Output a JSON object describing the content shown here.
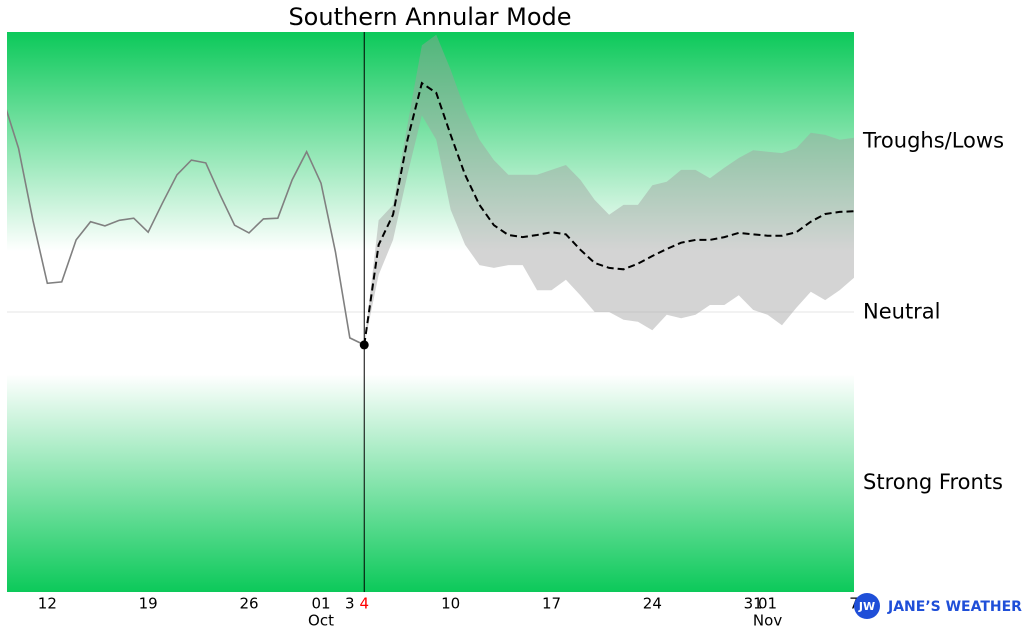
{
  "chart_data": {
    "type": "forecast-spread",
    "title": "Southern Annular Mode",
    "xlim": [
      -24.8,
      34
    ],
    "ylim": [
      -4,
      4
    ],
    "xticks": [
      {
        "value": -22,
        "label": "12"
      },
      {
        "value": -15,
        "label": "19"
      },
      {
        "value": -8,
        "label": "26"
      },
      {
        "value": -3,
        "label": "01"
      },
      {
        "value": -1,
        "label": "3"
      },
      {
        "value": 0,
        "label": "4",
        "color": "#ff0000"
      },
      {
        "value": 6,
        "label": "10"
      },
      {
        "value": 13,
        "label": "17"
      },
      {
        "value": 20,
        "label": "24"
      },
      {
        "value": 27,
        "label": "31"
      },
      {
        "value": 28,
        "label": "01"
      },
      {
        "value": 34,
        "label": "7"
      }
    ],
    "month_labels": [
      {
        "value": -3,
        "label": "Oct"
      },
      {
        "value": 28,
        "label": "Nov"
      }
    ],
    "zones": [
      {
        "label": "Troughs/Lows",
        "range": [
          0.87,
          4
        ],
        "gradient": "up"
      },
      {
        "label": "Neutral",
        "range": [
          -0.89,
          0.87
        ],
        "gradient": "none"
      },
      {
        "label": "Strong Fronts",
        "range": [
          -4,
          -0.89
        ],
        "gradient": "down"
      }
    ],
    "zone_color": "#0cc95a",
    "reference_line": 0,
    "forecast_start": 0,
    "observed": {
      "color": "#808080",
      "x": [
        -25,
        -24,
        -23,
        -22,
        -21,
        -20,
        -19,
        -18,
        -17,
        -16,
        -15,
        -14,
        -13,
        -12,
        -11,
        -10,
        -9,
        -8,
        -7,
        -6,
        -5,
        -4,
        -3,
        -2,
        -1,
        0
      ],
      "values": [
        2.99,
        2.34,
        1.31,
        0.41,
        0.43,
        1.03,
        1.29,
        1.23,
        1.31,
        1.34,
        1.14,
        1.56,
        1.96,
        2.17,
        2.13,
        1.67,
        1.24,
        1.13,
        1.33,
        1.34,
        1.89,
        2.29,
        1.84,
        0.86,
        -0.37,
        -0.47
      ]
    },
    "forecast": {
      "mean_color": "#000000",
      "spread_color": "#a0a0a0",
      "x": [
        0,
        1,
        2,
        3,
        4,
        5,
        6,
        7,
        8,
        9,
        10,
        11,
        12,
        13,
        14,
        15,
        16,
        17,
        18,
        19,
        20,
        21,
        22,
        23,
        24,
        25,
        26,
        27,
        28,
        29,
        30,
        31,
        32,
        33,
        34
      ],
      "mean": [
        -0.47,
        0.96,
        1.39,
        2.46,
        3.27,
        3.13,
        2.53,
        1.96,
        1.53,
        1.24,
        1.1,
        1.07,
        1.1,
        1.14,
        1.11,
        0.89,
        0.7,
        0.63,
        0.61,
        0.69,
        0.8,
        0.9,
        0.99,
        1.03,
        1.03,
        1.07,
        1.13,
        1.11,
        1.09,
        1.09,
        1.14,
        1.29,
        1.4,
        1.43,
        1.44
      ],
      "upper": [
        -0.47,
        1.31,
        1.53,
        2.67,
        3.81,
        3.96,
        3.46,
        2.89,
        2.46,
        2.17,
        1.96,
        1.96,
        1.96,
        2.03,
        2.1,
        1.89,
        1.6,
        1.39,
        1.53,
        1.53,
        1.81,
        1.86,
        2.03,
        2.03,
        1.91,
        2.06,
        2.2,
        2.31,
        2.29,
        2.27,
        2.34,
        2.56,
        2.53,
        2.46,
        2.49
      ],
      "lower": [
        -0.47,
        0.53,
        1.03,
        1.96,
        2.81,
        2.46,
        1.46,
        0.96,
        0.67,
        0.63,
        0.67,
        0.67,
        0.31,
        0.31,
        0.46,
        0.24,
        0,
        0,
        -0.11,
        -0.14,
        -0.26,
        -0.04,
        -0.09,
        -0.04,
        0.1,
        0.1,
        0.24,
        0.03,
        -0.04,
        -0.19,
        0.06,
        0.29,
        0.17,
        0.31,
        0.49
      ]
    },
    "watermark": {
      "logo": "JW",
      "name": "JANE’S WEATHER",
      "color": "#1f4fd8"
    }
  }
}
